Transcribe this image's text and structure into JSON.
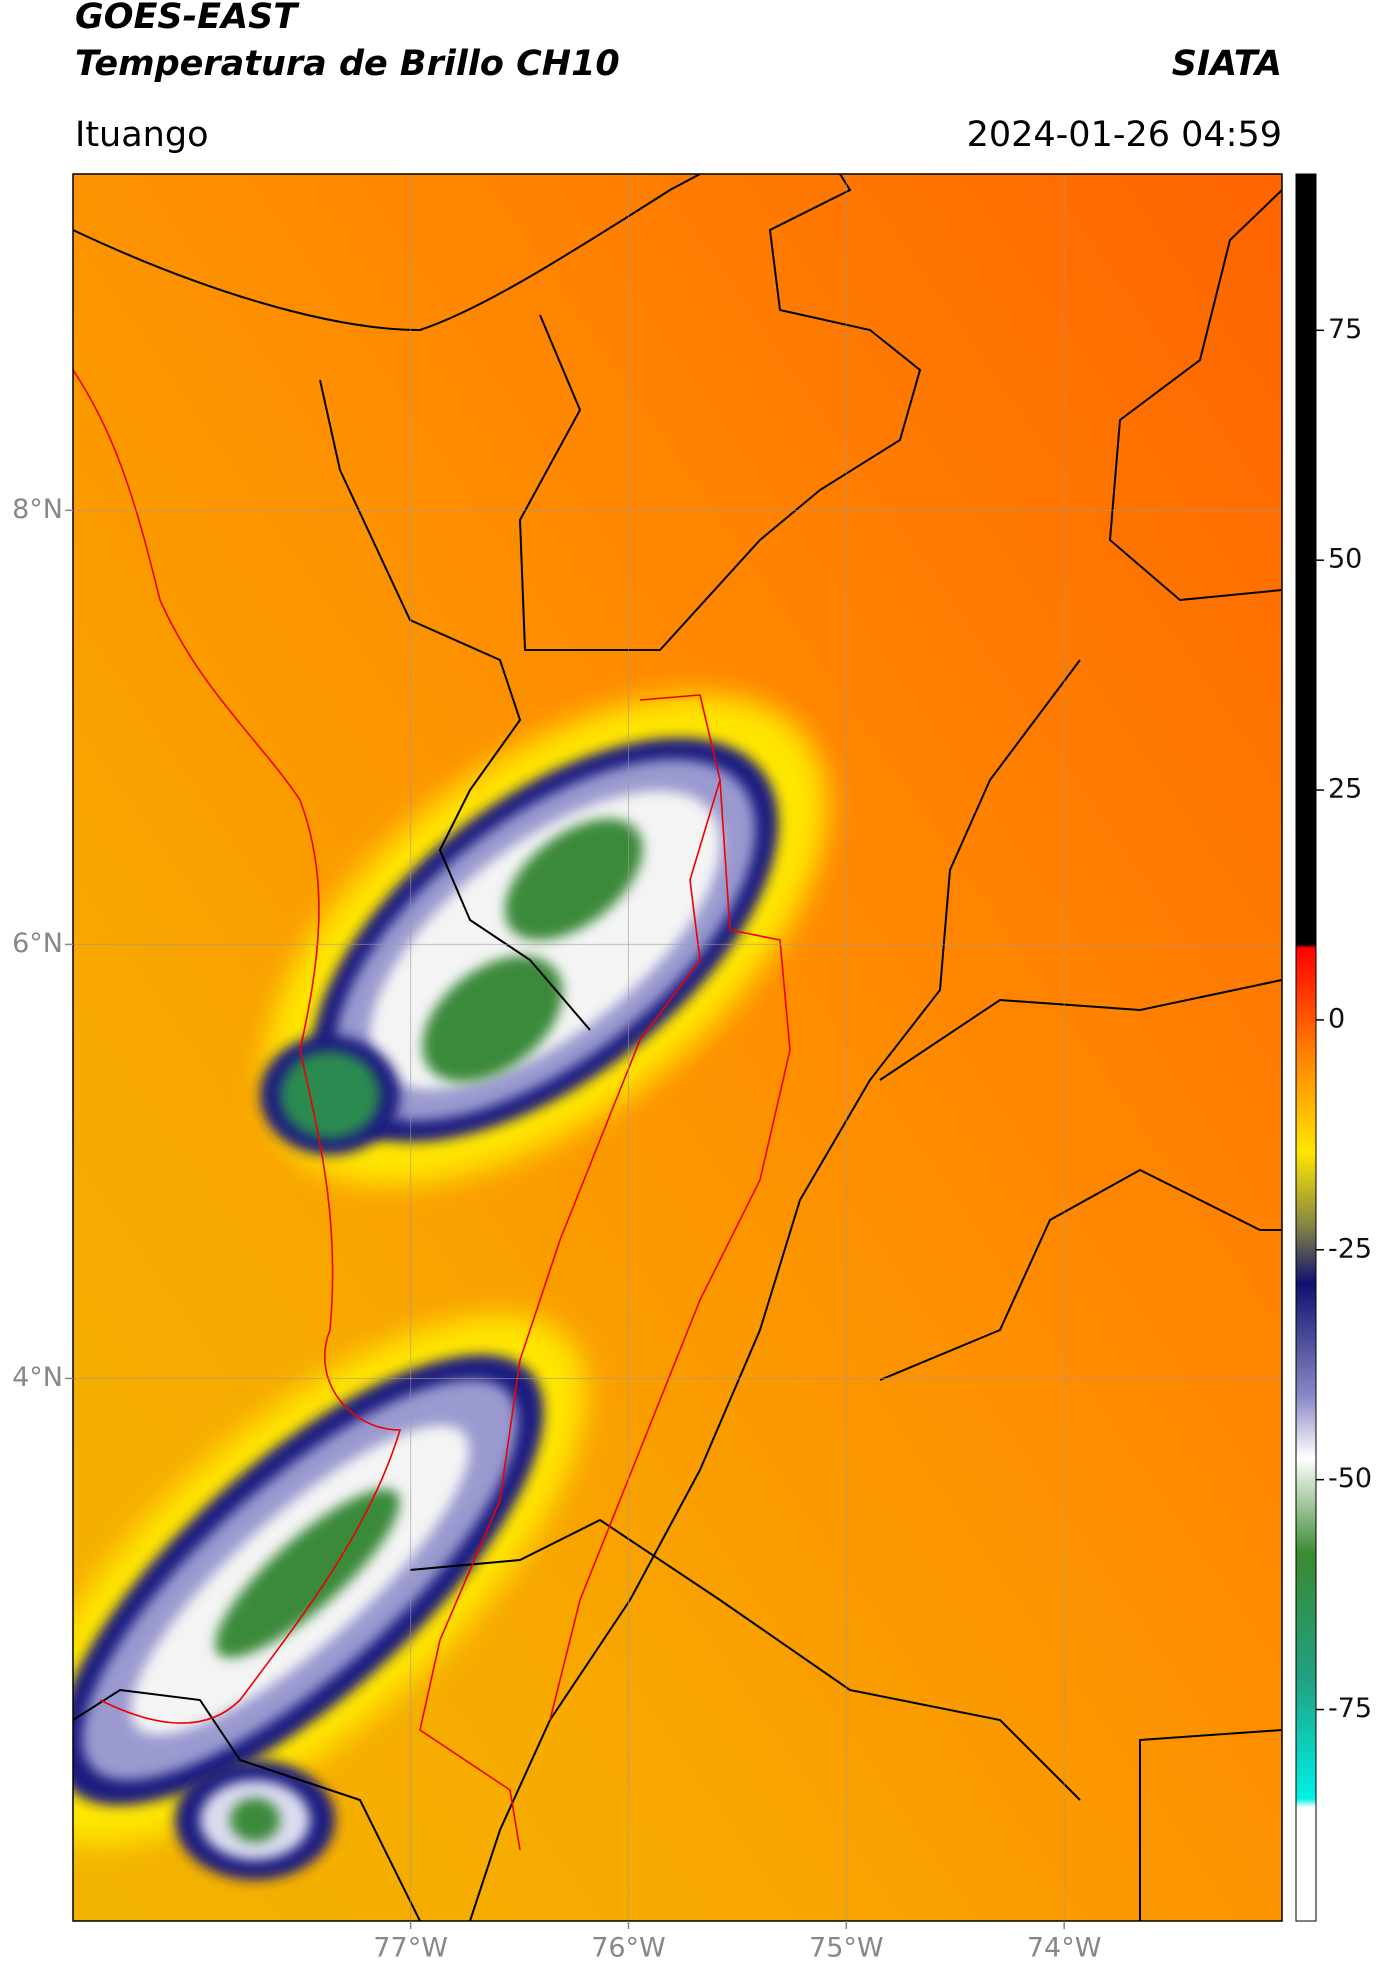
{
  "chart_data": {
    "type": "map",
    "title": "GOES-EAST",
    "subtitle": "Temperatura de Brillo CH10",
    "brand": "SIATA",
    "location": "Ituango",
    "datetime": "2024-01-26 04:59",
    "xlim": [
      -78.55,
      -73.0
    ],
    "ylim": [
      1.5,
      9.55
    ],
    "xticks": [
      {
        "value": -77,
        "label": "77°W"
      },
      {
        "value": -76,
        "label": "76°W"
      },
      {
        "value": -75,
        "label": "75°W"
      },
      {
        "value": -74,
        "label": "74°W"
      }
    ],
    "yticks": [
      {
        "value": 4,
        "label": "4°N"
      },
      {
        "value": 6,
        "label": "6°N"
      },
      {
        "value": 8,
        "label": "8°N"
      }
    ],
    "grid": true,
    "colorbar": {
      "lim": [
        -98,
        92
      ],
      "ticks": [
        75,
        50,
        25,
        0,
        -25,
        -50,
        -75
      ]
    }
  }
}
